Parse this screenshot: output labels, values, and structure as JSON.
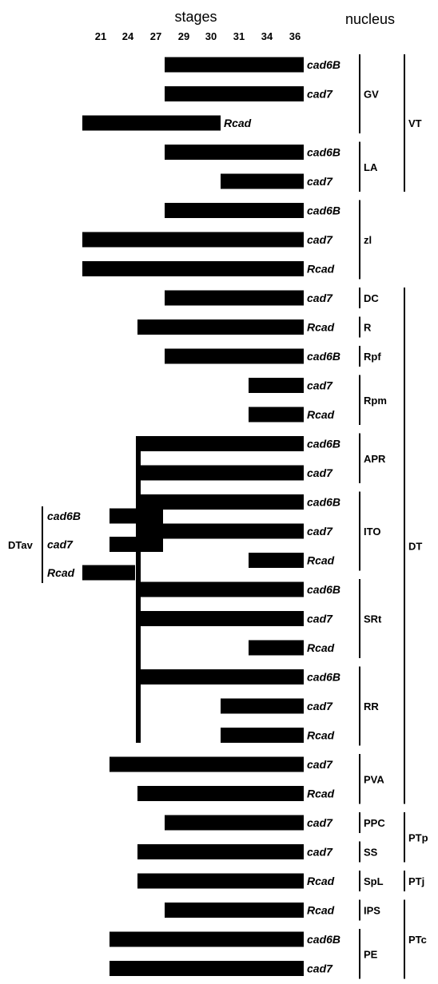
{
  "chart_data": {
    "type": "bar",
    "title": "stages",
    "right_title": "nucleus",
    "stages": [
      "21",
      "24",
      "27",
      "29",
      "30",
      "31",
      "34",
      "36"
    ],
    "rows": [
      {
        "gene": "cad6B",
        "start": "29",
        "end": "36",
        "nucleus": "GV"
      },
      {
        "gene": "cad7",
        "start": "29",
        "end": "36",
        "nucleus": "GV"
      },
      {
        "gene": "Rcad",
        "start": "21",
        "end": "30",
        "nucleus": "GV"
      },
      {
        "gene": "cad6B",
        "start": "29",
        "end": "36",
        "nucleus": "LA"
      },
      {
        "gene": "cad7",
        "start": "31",
        "end": "36",
        "nucleus": "LA"
      },
      {
        "gene": "cad6B",
        "start": "29",
        "end": "36",
        "nucleus": "zl"
      },
      {
        "gene": "cad7",
        "start": "21",
        "end": "36",
        "nucleus": "zl"
      },
      {
        "gene": "Rcad",
        "start": "21",
        "end": "36",
        "nucleus": "zl"
      },
      {
        "gene": "cad7",
        "start": "29",
        "end": "36",
        "nucleus": "DC"
      },
      {
        "gene": "Rcad",
        "start": "27",
        "end": "36",
        "nucleus": "R"
      },
      {
        "gene": "cad6B",
        "start": "29",
        "end": "36",
        "nucleus": "Rpf"
      },
      {
        "gene": "cad7",
        "start": "34",
        "end": "36",
        "nucleus": "Rpm"
      },
      {
        "gene": "Rcad",
        "start": "34",
        "end": "36",
        "nucleus": "Rpm"
      },
      {
        "gene": "cad6B",
        "start": "27",
        "end": "36",
        "nucleus": "APR"
      },
      {
        "gene": "cad7",
        "start": "27",
        "end": "36",
        "nucleus": "APR"
      },
      {
        "gene": "cad6B",
        "start": "27",
        "end": "36",
        "nucleus": "ITO"
      },
      {
        "gene": "cad7",
        "start": "27",
        "end": "36",
        "nucleus": "ITO"
      },
      {
        "gene": "Rcad",
        "start": "34",
        "end": "36",
        "nucleus": "ITO"
      },
      {
        "gene": "cad6B",
        "start": "27",
        "end": "36",
        "nucleus": "SRt"
      },
      {
        "gene": "cad7",
        "start": "27",
        "end": "36",
        "nucleus": "SRt"
      },
      {
        "gene": "Rcad",
        "start": "34",
        "end": "36",
        "nucleus": "SRt"
      },
      {
        "gene": "cad6B",
        "start": "27",
        "end": "36",
        "nucleus": "RR"
      },
      {
        "gene": "cad7",
        "start": "31",
        "end": "36",
        "nucleus": "RR"
      },
      {
        "gene": "Rcad",
        "start": "31",
        "end": "36",
        "nucleus": "RR"
      },
      {
        "gene": "cad7",
        "start": "24",
        "end": "36",
        "nucleus": "PVA"
      },
      {
        "gene": "Rcad",
        "start": "27",
        "end": "36",
        "nucleus": "PVA"
      },
      {
        "gene": "cad7",
        "start": "29",
        "end": "36",
        "nucleus": "PPC"
      },
      {
        "gene": "cad7",
        "start": "27",
        "end": "36",
        "nucleus": "SS"
      },
      {
        "gene": "Rcad",
        "start": "27",
        "end": "36",
        "nucleus": "SpL"
      },
      {
        "gene": "Rcad",
        "start": "29",
        "end": "36",
        "nucleus": "IPS"
      },
      {
        "gene": "cad6B",
        "start": "24",
        "end": "36",
        "nucleus": "PE"
      },
      {
        "gene": "cad7",
        "start": "24",
        "end": "36",
        "nucleus": "PE"
      }
    ],
    "dtav": {
      "label": "DTav",
      "rows": [
        {
          "gene": "cad6B",
          "start": "24",
          "end": "27"
        },
        {
          "gene": "cad7",
          "start": "24",
          "end": "27"
        },
        {
          "gene": "Rcad",
          "start": "21",
          "end": "24"
        }
      ]
    },
    "nucleus_groups": [
      {
        "label": "GV",
        "rows": [
          0,
          2
        ]
      },
      {
        "label": "LA",
        "rows": [
          3,
          4
        ]
      },
      {
        "label": "zl",
        "rows": [
          5,
          7
        ]
      },
      {
        "label": "DC",
        "rows": [
          8,
          8
        ]
      },
      {
        "label": "R",
        "rows": [
          9,
          9
        ]
      },
      {
        "label": "Rpf",
        "rows": [
          10,
          10
        ]
      },
      {
        "label": "Rpm",
        "rows": [
          11,
          12
        ]
      },
      {
        "label": "APR",
        "rows": [
          13,
          14
        ]
      },
      {
        "label": "ITO",
        "rows": [
          15,
          17
        ]
      },
      {
        "label": "SRt",
        "rows": [
          18,
          20
        ]
      },
      {
        "label": "RR",
        "rows": [
          21,
          23
        ]
      },
      {
        "label": "PVA",
        "rows": [
          24,
          25
        ]
      },
      {
        "label": "PPC",
        "rows": [
          26,
          26
        ]
      },
      {
        "label": "SS",
        "rows": [
          27,
          27
        ]
      },
      {
        "label": "SpL",
        "rows": [
          28,
          28
        ]
      },
      {
        "label": "IPS",
        "rows": [
          29,
          29
        ]
      },
      {
        "label": "PE",
        "rows": [
          30,
          31
        ]
      }
    ],
    "region_groups": [
      {
        "label": "VT",
        "rows": [
          0,
          4
        ]
      },
      {
        "label": "DT",
        "rows": [
          8,
          25
        ]
      },
      {
        "label": "PTp",
        "rows": [
          26,
          27
        ]
      },
      {
        "label": "PTj",
        "rows": [
          28,
          28
        ]
      },
      {
        "label": "PTc",
        "rows": [
          29,
          31
        ]
      }
    ],
    "connector": {
      "stage": "27",
      "rows": [
        13,
        23
      ]
    }
  }
}
